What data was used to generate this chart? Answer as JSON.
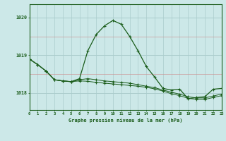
{
  "title": "Graphe pression niveau de la mer (hPa)",
  "bg_color": "#cce8e8",
  "line_color": "#1a5c1a",
  "grid_color": "#aacccc",
  "red_line_color": "#cc9999",
  "xlim": [
    0,
    23
  ],
  "ylim": [
    1017.55,
    1020.35
  ],
  "yticks": [
    1018,
    1019,
    1020
  ],
  "xticks": [
    0,
    1,
    2,
    3,
    4,
    5,
    6,
    7,
    8,
    9,
    10,
    11,
    12,
    13,
    14,
    15,
    16,
    17,
    18,
    19,
    20,
    21,
    22,
    23
  ],
  "hours": [
    0,
    1,
    2,
    3,
    4,
    5,
    6,
    7,
    8,
    9,
    10,
    11,
    12,
    13,
    14,
    15,
    16,
    17,
    18,
    19,
    20,
    21,
    22,
    23
  ],
  "series_peak": [
    1018.9,
    1018.75,
    1018.58,
    1018.35,
    1018.32,
    1018.3,
    1018.38,
    1019.12,
    1019.55,
    1019.78,
    1019.92,
    1019.82,
    1019.5,
    1019.12,
    1018.7,
    1018.42,
    1018.12,
    1018.08,
    1018.1,
    1017.85,
    1017.88,
    1017.9,
    1018.1,
    1018.12
  ],
  "series_mid": [
    1018.9,
    1018.75,
    1018.58,
    1018.35,
    1018.32,
    1018.3,
    1018.35,
    1018.38,
    1018.35,
    1018.32,
    1018.3,
    1018.28,
    1018.26,
    1018.22,
    1018.18,
    1018.14,
    1018.08,
    1018.02,
    1017.97,
    1017.9,
    1017.87,
    1017.87,
    1017.92,
    1017.97
  ],
  "series_low": [
    1018.9,
    1018.75,
    1018.58,
    1018.35,
    1018.32,
    1018.3,
    1018.32,
    1018.31,
    1018.28,
    1018.26,
    1018.24,
    1018.22,
    1018.2,
    1018.18,
    1018.15,
    1018.11,
    1018.05,
    1017.98,
    1017.93,
    1017.86,
    1017.83,
    1017.83,
    1017.88,
    1017.93
  ]
}
